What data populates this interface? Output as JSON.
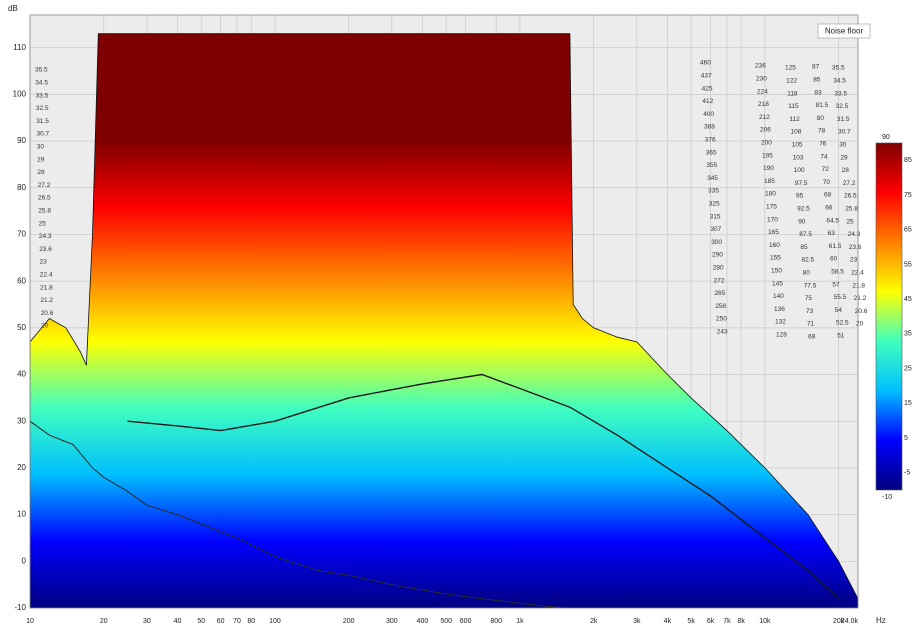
{
  "chart_data": {
    "type": "waterfall",
    "ylabel": "dB",
    "xunit": "Hz",
    "xscale": "log",
    "xlim": [
      10,
      24000
    ],
    "ylim": [
      -10,
      117
    ],
    "xticks": [
      10,
      20,
      30,
      40,
      50,
      60,
      70,
      80,
      100,
      200,
      300,
      400,
      500,
      600,
      800,
      {
        "value": 1000,
        "label": "1k"
      },
      {
        "value": 2000,
        "label": "2k"
      },
      {
        "value": 3000,
        "label": "3k"
      },
      {
        "value": 4000,
        "label": "4k"
      },
      {
        "value": 5000,
        "label": "5k"
      },
      {
        "value": 6000,
        "label": "6k"
      },
      {
        "value": 7000,
        "label": "7k"
      },
      {
        "value": 8000,
        "label": "8k"
      },
      {
        "value": 10000,
        "label": "10k"
      },
      {
        "value": 20000,
        "label": "20k"
      },
      {
        "value": 24000,
        "label": "24.0k"
      }
    ],
    "yticks": [
      -10,
      0,
      10,
      20,
      30,
      40,
      50,
      60,
      70,
      80,
      90,
      100,
      110
    ],
    "grid": true,
    "background": "#ececec",
    "colormap": [
      "#00007f",
      "#0000ff",
      "#00bfff",
      "#40ffbf",
      "#ffff00",
      "#ff7f00",
      "#ff0000",
      "#7f0000"
    ],
    "clim": [
      -10,
      90
    ],
    "cticks": [
      -10,
      -5,
      5,
      15,
      25,
      35,
      45,
      55,
      65,
      75,
      85,
      90
    ],
    "series": [
      {
        "color": "gradient",
        "fill": true,
        "x": [
          10,
          12,
          14,
          16,
          17,
          18,
          19,
          1550,
          1600,
          1650,
          1800,
          2000,
          2500,
          3000,
          4000,
          5000,
          7000,
          10000,
          15000,
          20000,
          24000
        ],
        "values": [
          47,
          52,
          50,
          45,
          42,
          70,
          113,
          113,
          113,
          55,
          52,
          50,
          48,
          47,
          40,
          35,
          28,
          20,
          10,
          0,
          -8
        ]
      },
      {
        "color": "#1a1a1a",
        "x": [
          25,
          40,
          60,
          100,
          200,
          400,
          700,
          1000,
          1600,
          2500,
          4000,
          6000,
          10000,
          15000,
          20000
        ],
        "values": [
          30,
          29,
          28,
          30,
          35,
          38,
          40,
          37,
          33,
          27,
          20,
          14,
          5,
          -2,
          -8
        ]
      },
      {
        "name": "Noise floor",
        "color": "#2a2a2a",
        "x": [
          10,
          12,
          15,
          18,
          20,
          25,
          30,
          40,
          50,
          70,
          100,
          150,
          200,
          300,
          500,
          700,
          1000,
          1500
        ],
        "values": [
          30,
          27,
          25,
          20,
          18,
          15,
          12,
          10,
          8,
          5,
          1,
          -2,
          -3,
          -5,
          -7,
          -8,
          -9,
          -10
        ]
      }
    ],
    "slice_labels": [
      [
        "35.5",
        "34.5",
        "33.5",
        "32.5",
        "31.5",
        "30.7",
        "30",
        "29",
        "28",
        "27.2",
        "26.5",
        "25.8",
        "25",
        "24.3",
        "23.6",
        "23",
        "22.4",
        "21.8",
        "21.2",
        "20.6",
        "20"
      ],
      [
        "460",
        "437",
        "425",
        "412",
        "400",
        "388",
        "376",
        "365",
        "355",
        "345",
        "335",
        "325",
        "315",
        "307",
        "300",
        "290",
        "280",
        "272",
        "265",
        "258",
        "250",
        "243"
      ],
      [
        "236",
        "230",
        "224",
        "218",
        "212",
        "206",
        "200",
        "195",
        "190",
        "185",
        "180",
        "175",
        "170",
        "165",
        "160",
        "155",
        "150",
        "145",
        "140",
        "136",
        "132",
        "128"
      ],
      [
        "125",
        "122",
        "118",
        "115",
        "112",
        "108",
        "105",
        "103",
        "100",
        "97.5",
        "95",
        "92.5",
        "90",
        "87.5",
        "85",
        "82.5",
        "80",
        "77.5",
        "75",
        "73",
        "71",
        "69"
      ],
      [
        "87",
        "85",
        "83",
        "81.5",
        "80",
        "78",
        "76",
        "74",
        "72",
        "70",
        "68",
        "66",
        "64.5",
        "63",
        "61.5",
        "60",
        "58.5",
        "57",
        "55.5",
        "54",
        "52.5",
        "51"
      ],
      [
        "35.5",
        "34.5",
        "33.5",
        "32.5",
        "31.5",
        "30.7",
        "30",
        "29",
        "28",
        "27.2",
        "26.5",
        "25.8",
        "25",
        "24.3",
        "23.6",
        "23",
        "22.4",
        "21.8",
        "21.2",
        "20.6",
        "20"
      ]
    ]
  }
}
